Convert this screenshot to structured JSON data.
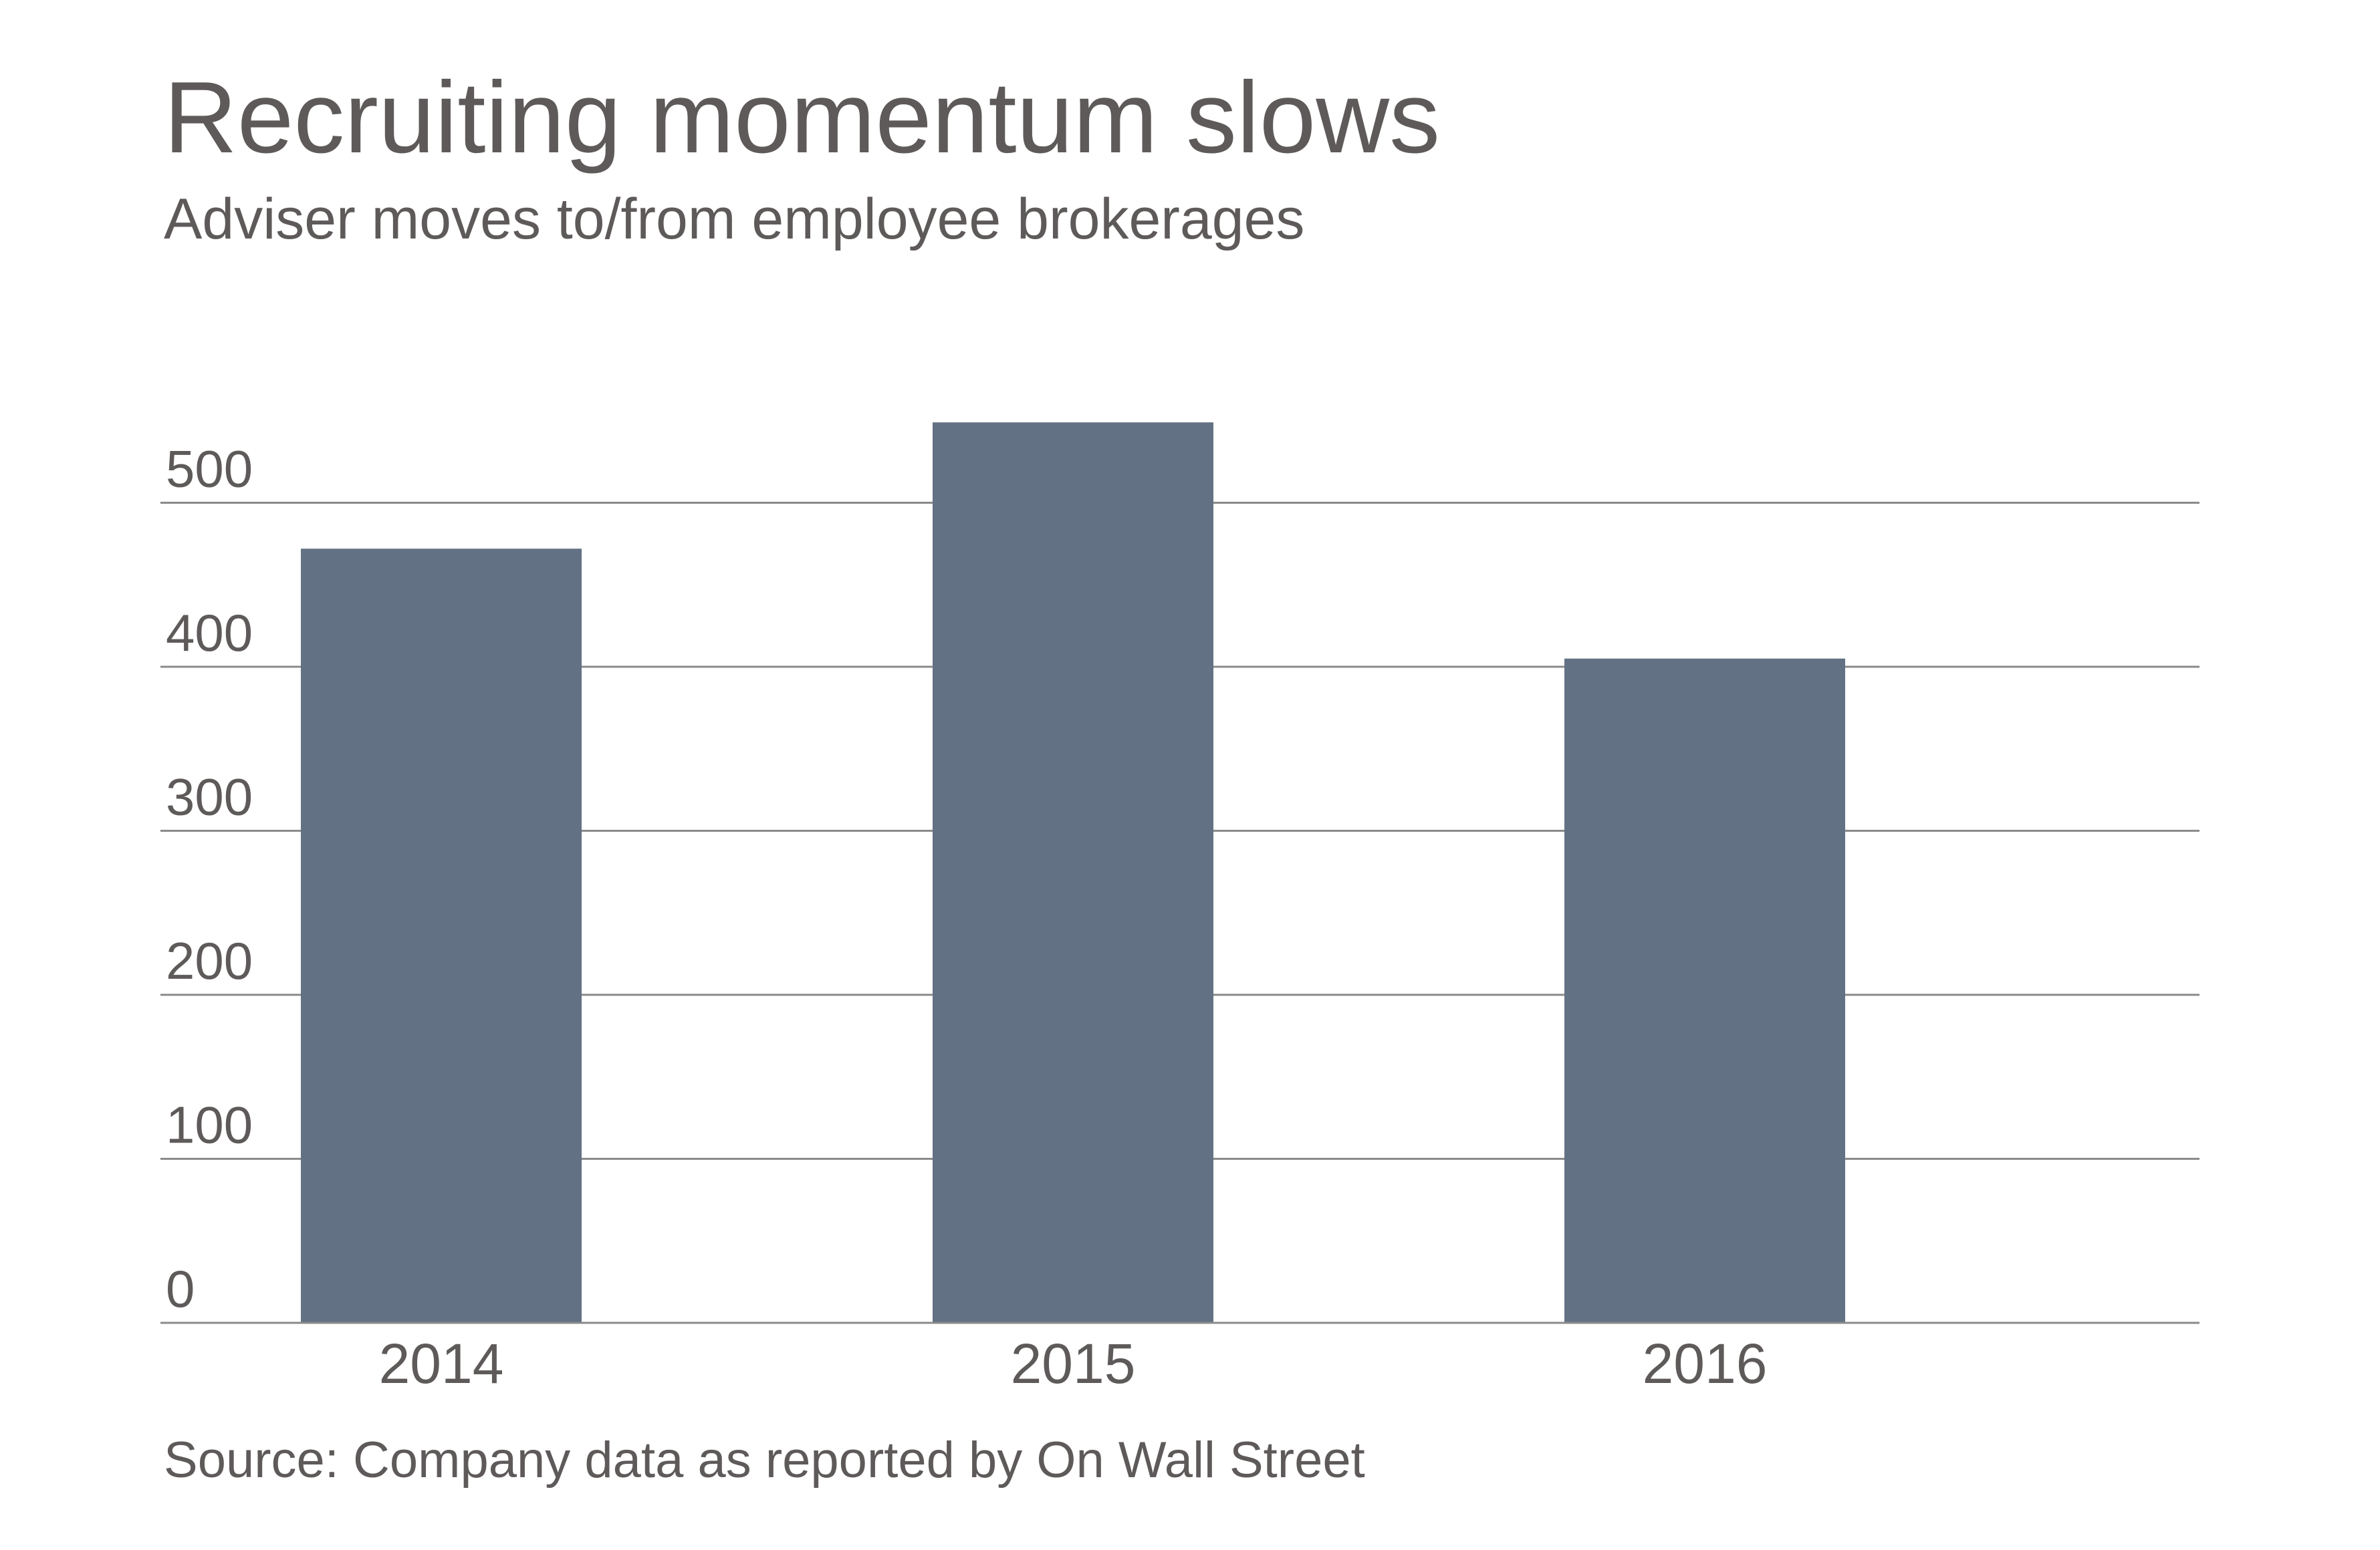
{
  "chart_data": {
    "type": "bar",
    "title": "Recruiting momentum slows",
    "subtitle": "Adviser moves to/from employee brokerages",
    "source": "Source: Company data as reported by On Wall Street",
    "categories": [
      "2014",
      "2015",
      "2016"
    ],
    "values": [
      472,
      549,
      405
    ],
    "yticks": [
      0,
      100,
      200,
      300,
      400,
      500
    ],
    "ylim": [
      0,
      560
    ],
    "xlabel": "",
    "ylabel": "",
    "grid": true,
    "colors": {
      "bar": "#637184",
      "gridline": "#8a8a8a",
      "text": "#5f5a5a"
    }
  }
}
